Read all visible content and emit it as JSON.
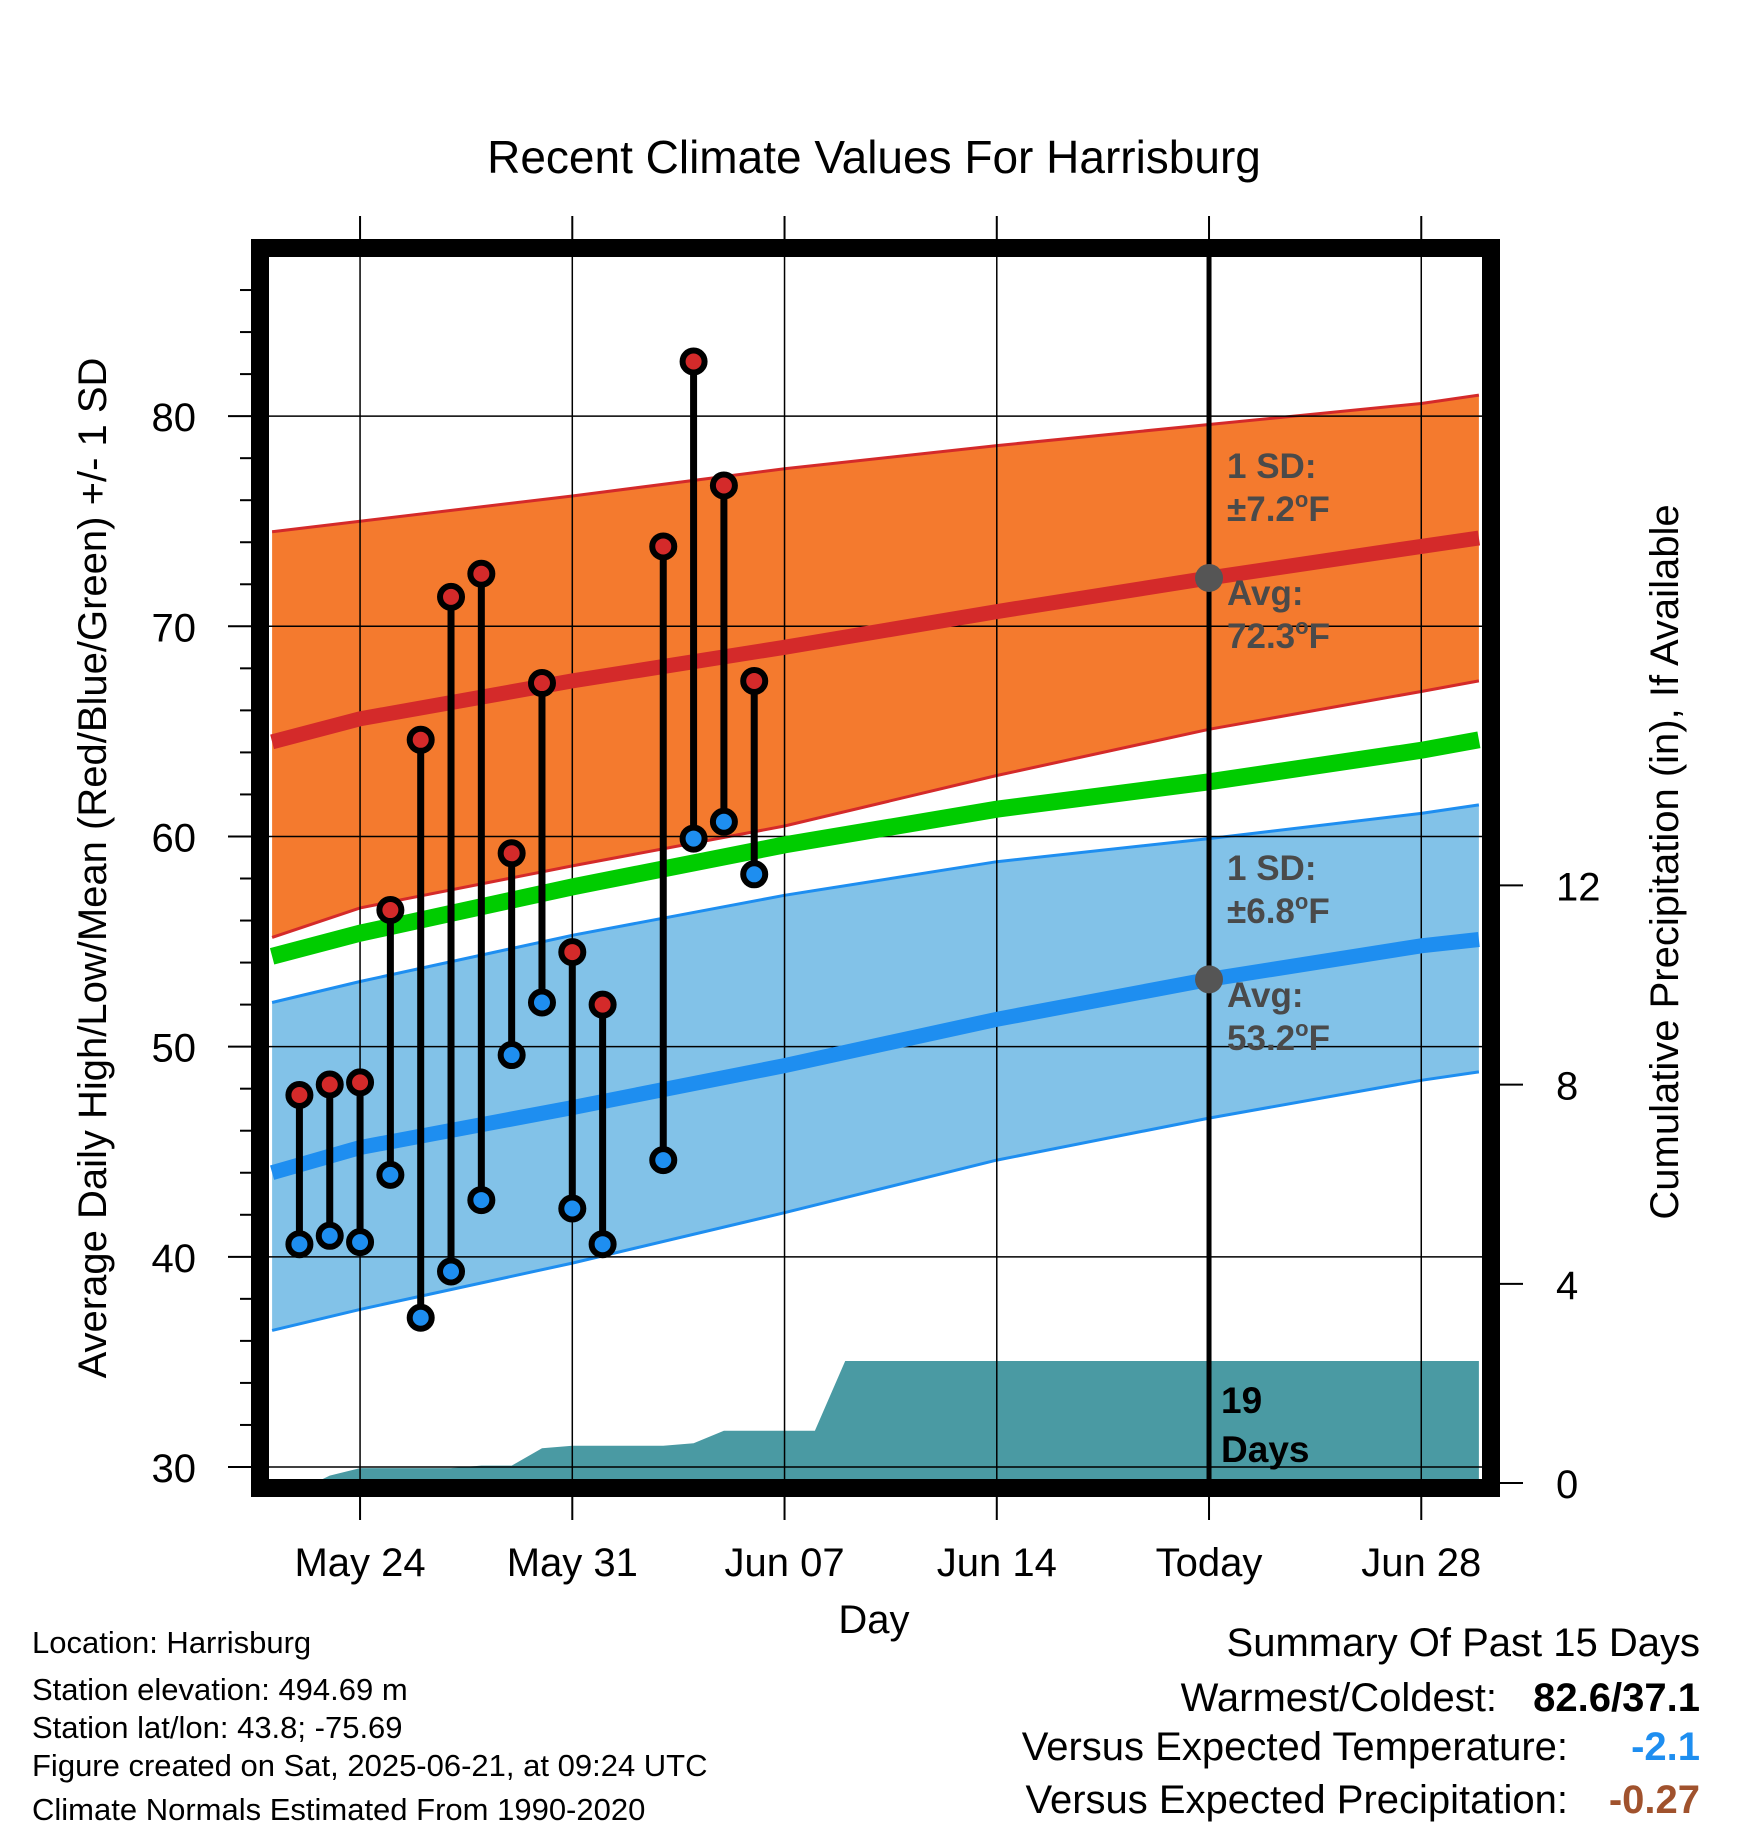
{
  "chart_data": {
    "type": "line",
    "title": "Recent Climate Values For Harrisburg",
    "xlabel": "Day",
    "ylabel": "Average Daily High/Low/Mean (Red/Blue/Green) +/- 1 SD",
    "y2label": "Cumulative Precipitation (in), If Available",
    "xlim": [
      -3.3,
      37.3
    ],
    "ylim": [
      29,
      88
    ],
    "y2lim": [
      -0.1,
      24.8
    ],
    "x_ticks": [
      {
        "x": 0,
        "label": "May 24"
      },
      {
        "x": 7,
        "label": "May 31"
      },
      {
        "x": 14,
        "label": "Jun 07"
      },
      {
        "x": 21,
        "label": "Jun 14"
      },
      {
        "x": 28,
        "label": "Today"
      },
      {
        "x": 35,
        "label": "Jun 28"
      }
    ],
    "y_ticks": [
      30,
      40,
      50,
      60,
      70,
      80
    ],
    "y2_ticks": [
      0,
      4,
      8,
      12
    ],
    "grid": true,
    "today_x": 28,
    "normals_x": [
      -2.9,
      0,
      7,
      14,
      21,
      28,
      35,
      36.9
    ],
    "normal_high": [
      64.5,
      65.6,
      67.4,
      69.0,
      70.7,
      72.3,
      73.8,
      74.2
    ],
    "normal_high_upper": [
      74.5,
      75.0,
      76.2,
      77.5,
      78.6,
      79.6,
      80.6,
      81.0
    ],
    "normal_high_lower": [
      55.2,
      56.6,
      58.6,
      60.5,
      62.9,
      65.1,
      66.9,
      67.4
    ],
    "normal_mean": [
      54.3,
      55.4,
      57.6,
      59.6,
      61.3,
      62.6,
      64.1,
      64.6
    ],
    "normal_low": [
      44.0,
      45.2,
      47.1,
      49.1,
      51.3,
      53.2,
      54.8,
      55.1
    ],
    "normal_low_upper": [
      52.1,
      53.1,
      55.3,
      57.2,
      58.8,
      59.9,
      61.1,
      61.5
    ],
    "normal_low_lower": [
      36.5,
      37.5,
      39.7,
      42.1,
      44.6,
      46.6,
      48.4,
      48.8
    ],
    "daily_x": [
      -2,
      -1,
      0,
      1,
      2,
      3,
      4,
      5,
      6,
      7,
      8,
      10,
      11,
      12,
      13
    ],
    "daily_high": [
      47.7,
      48.2,
      48.3,
      56.5,
      64.6,
      71.4,
      72.5,
      59.2,
      67.3,
      54.5,
      52.0,
      73.8,
      82.6,
      76.7,
      67.4
    ],
    "daily_low": [
      40.6,
      41.0,
      40.7,
      43.9,
      37.1,
      39.3,
      42.7,
      49.6,
      52.1,
      42.3,
      40.6,
      44.6,
      59.9,
      60.7,
      58.2
    ],
    "precip_x": [
      -2.9,
      -1.5,
      -1,
      0,
      1,
      2,
      3,
      4,
      5,
      6,
      7,
      8,
      10,
      11,
      12,
      13,
      14,
      15,
      16,
      20,
      28,
      36.9
    ],
    "precip": [
      0.0,
      0.0,
      0.15,
      0.3,
      0.3,
      0.3,
      0.3,
      0.35,
      0.35,
      0.7,
      0.75,
      0.75,
      0.75,
      0.8,
      1.05,
      1.05,
      1.05,
      1.05,
      2.45,
      2.45,
      2.45,
      2.45
    ],
    "annotations": {
      "high_sd_label": "1 SD:",
      "high_sd_value": "±7.2",
      "high_avg_label": "Avg:",
      "high_avg_value": "72.3",
      "low_sd_label": "1 SD:",
      "low_sd_value": "±6.8",
      "low_avg_label": "Avg:",
      "low_avg_value": "53.2",
      "degree_unit": "F",
      "precip_days_number": "19",
      "precip_days_word": "Days"
    },
    "colors": {
      "high_band": "#f47a2e",
      "high_line": "#d42a2a",
      "low_band": "#82c2e8",
      "low_line": "#1e8ef0",
      "mean_line": "#00cc00",
      "precip": "#4a9aa3",
      "high_marker": "#d42a2a",
      "low_marker": "#1e8ef0",
      "annotation_text": "#4a4a4a"
    }
  },
  "footer": {
    "location": "Location: Harrisburg",
    "elevation": "Station elevation: 494.69 m",
    "latlon": "Station lat/lon: 43.8; -75.69",
    "created": "Figure created on Sat, 2025-06-21, at 09:24 UTC",
    "normals": "Climate Normals Estimated From 1990-2020"
  },
  "summary": {
    "title": "Summary Of Past 15 Days",
    "warm_cold_label": "Warmest/Coldest:",
    "warm_cold_value": "82.6/37.1",
    "temp_label": "Versus Expected Temperature:",
    "temp_value": "-2.1",
    "temp_color": "#1e8ef0",
    "precip_label": "Versus Expected Precipitation:",
    "precip_value": "-0.27",
    "precip_color": "#a0522d"
  }
}
